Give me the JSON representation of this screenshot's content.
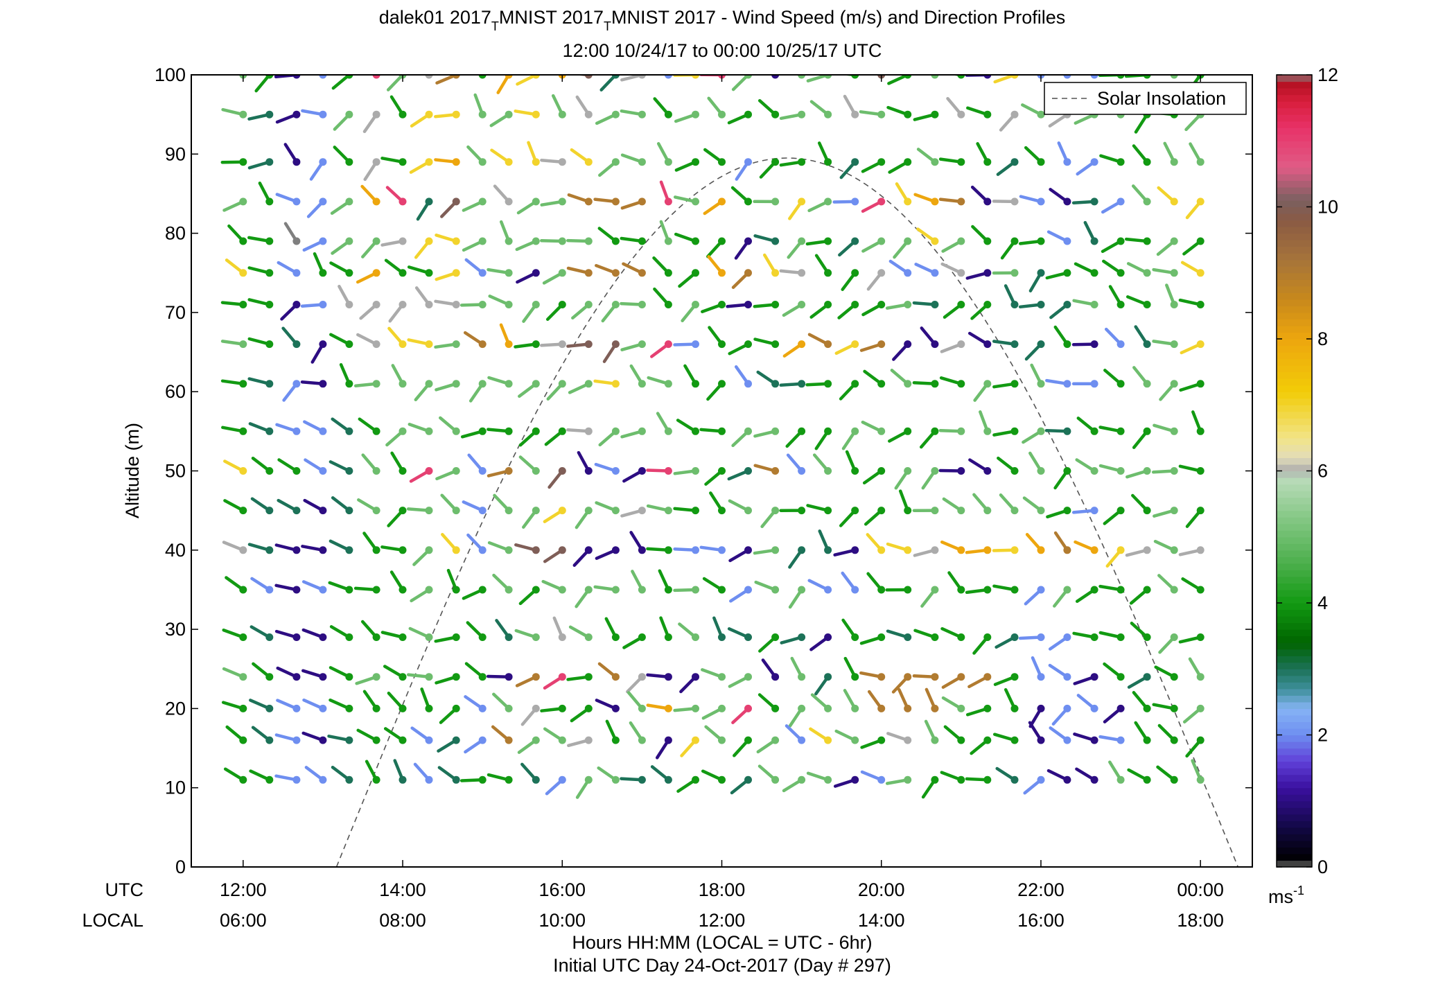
{
  "chart_data": {
    "type": "scatter",
    "title_parts": [
      "dalek01 2017",
      "T",
      "MNIST 2017",
      "T",
      "MNIST 2017 - Wind Speed (m/s) and Direction Profiles"
    ],
    "subtitle": "12:00 10/24/17 to 00:00 10/25/17  UTC",
    "ylabel": "Altitude (m)",
    "xlabel": "Hours HH:MM  (LOCAL = UTC - 6hr)",
    "xlabel2": "Initial UTC Day 24-Oct-2017 (Day # 297)",
    "row_label_utc": "UTC",
    "row_label_local": "LOCAL",
    "ylim": [
      0,
      100
    ],
    "yticks": [
      "0",
      "10",
      "20",
      "30",
      "40",
      "50",
      "60",
      "70",
      "80",
      "90",
      "100"
    ],
    "xlim_hours": [
      11.35,
      24.65
    ],
    "xticks_hours": [
      12,
      14,
      16,
      18,
      20,
      22,
      24
    ],
    "xtick_labels_utc": [
      "12:00",
      "14:00",
      "16:00",
      "18:00",
      "20:00",
      "22:00",
      "00:00"
    ],
    "xtick_labels_local": [
      "06:00",
      "08:00",
      "10:00",
      "12:00",
      "14:00",
      "16:00",
      "18:00"
    ],
    "legend": {
      "label": "Solar Insolation",
      "placement": "top-right",
      "style": "dashed"
    },
    "colorbar": {
      "range": [
        0,
        12
      ],
      "ticks": [
        "0",
        "2",
        "4",
        "6",
        "8",
        "10",
        "12"
      ],
      "unit_base": "ms",
      "unit_exp": "-1",
      "stops": [
        {
          "v": 0.0,
          "c": "#7f7f7f"
        },
        {
          "v": 0.1,
          "c": "#000000"
        },
        {
          "v": 0.6,
          "c": "#120845"
        },
        {
          "v": 1.2,
          "c": "#3a10a0"
        },
        {
          "v": 1.6,
          "c": "#6040d8"
        },
        {
          "v": 2.0,
          "c": "#6e8ef0"
        },
        {
          "v": 2.4,
          "c": "#86b4f4"
        },
        {
          "v": 2.7,
          "c": "#3e8f9a"
        },
        {
          "v": 3.0,
          "c": "#1c7258"
        },
        {
          "v": 3.4,
          "c": "#006400"
        },
        {
          "v": 4.0,
          "c": "#129a12"
        },
        {
          "v": 4.6,
          "c": "#4caf4c"
        },
        {
          "v": 5.3,
          "c": "#86c886"
        },
        {
          "v": 5.9,
          "c": "#bcdcbc"
        },
        {
          "v": 6.0,
          "c": "#ababab"
        },
        {
          "v": 6.2,
          "c": "#e2dcba"
        },
        {
          "v": 6.5,
          "c": "#f2e486"
        },
        {
          "v": 7.2,
          "c": "#f2cc08"
        },
        {
          "v": 8.0,
          "c": "#eda60e"
        },
        {
          "v": 8.6,
          "c": "#c8891c"
        },
        {
          "v": 9.2,
          "c": "#a6743a"
        },
        {
          "v": 9.8,
          "c": "#8a5a44"
        },
        {
          "v": 10.1,
          "c": "#7a6060"
        },
        {
          "v": 10.6,
          "c": "#e05c86"
        },
        {
          "v": 11.2,
          "c": "#e83268"
        },
        {
          "v": 11.6,
          "c": "#d81e3c"
        },
        {
          "v": 11.9,
          "c": "#b01020"
        },
        {
          "v": 12.0,
          "c": "#8a8a8a"
        }
      ]
    },
    "solar_curve": {
      "start_hour": 13.17,
      "end_hour": 24.47,
      "peak_hour": 18.82,
      "peak_alt": 89.5
    },
    "altitudes_m": [
      100,
      95,
      89,
      84,
      79,
      75,
      71,
      66,
      61,
      55,
      50,
      45,
      40,
      35,
      29,
      24,
      20,
      16,
      11
    ],
    "time_hours": [
      12.0,
      12.33,
      12.67,
      13.0,
      13.33,
      13.67,
      14.0,
      14.33,
      14.67,
      15.0,
      15.33,
      15.67,
      16.0,
      16.33,
      16.67,
      17.0,
      17.33,
      17.67,
      18.0,
      18.33,
      18.67,
      19.0,
      19.33,
      19.67,
      20.0,
      20.33,
      20.67,
      21.0,
      21.33,
      21.67,
      22.0,
      22.33,
      22.67,
      23.0,
      23.33,
      23.67,
      24.0
    ],
    "speed_ms": [
      [
        5,
        4,
        1,
        2,
        4,
        11,
        5,
        6,
        9,
        4,
        8,
        7,
        8,
        10,
        3,
        6,
        2,
        7,
        11,
        5,
        1,
        5,
        5,
        4,
        10,
        4,
        5,
        4,
        1,
        7,
        2,
        2,
        2,
        4,
        4,
        5,
        4
      ],
      [
        5,
        3,
        1,
        2,
        5,
        6,
        4,
        7,
        7,
        5,
        5,
        7,
        5,
        6,
        5,
        5,
        4,
        5,
        5,
        4,
        4,
        5,
        5,
        6,
        5,
        4,
        4,
        6,
        4,
        6,
        5,
        6,
        5,
        5,
        4,
        4,
        5
      ],
      [
        4,
        3,
        1,
        2,
        4,
        6,
        4,
        7,
        8,
        5,
        7,
        7,
        6,
        7,
        5,
        5,
        5,
        4,
        4,
        2,
        4,
        4,
        4,
        3,
        4,
        4,
        5,
        4,
        4,
        3,
        4,
        2,
        2,
        4,
        4,
        5,
        5
      ],
      [
        5,
        4,
        2,
        2,
        5,
        8,
        11,
        3,
        10,
        5,
        6,
        5,
        5,
        9,
        9,
        9,
        11,
        5,
        8,
        4,
        5,
        7,
        5,
        2,
        11,
        7,
        8,
        9,
        1,
        6,
        2,
        1,
        3,
        2,
        5,
        7,
        7
      ],
      [
        4,
        4,
        0,
        2,
        5,
        5,
        6,
        7,
        7,
        5,
        5,
        5,
        5,
        5,
        4,
        4,
        5,
        4,
        4,
        1,
        3,
        5,
        4,
        3,
        5,
        5,
        7,
        5,
        4,
        4,
        4,
        2,
        3,
        4,
        4,
        5,
        4
      ],
      [
        7,
        4,
        2,
        4,
        4,
        8,
        4,
        4,
        7,
        2,
        5,
        1,
        5,
        9,
        9,
        9,
        4,
        4,
        8,
        9,
        7,
        6,
        4,
        4,
        6,
        2,
        2,
        6,
        1,
        5,
        3,
        4,
        4,
        4,
        5,
        5,
        7
      ],
      [
        4,
        4,
        1,
        2,
        6,
        6,
        6,
        6,
        6,
        5,
        5,
        5,
        4,
        5,
        5,
        5,
        4,
        5,
        4,
        1,
        4,
        5,
        4,
        4,
        4,
        5,
        3,
        4,
        4,
        3,
        3,
        3,
        5,
        4,
        4,
        5,
        4
      ],
      [
        5,
        4,
        3,
        1,
        4,
        6,
        7,
        7,
        5,
        9,
        8,
        4,
        6,
        10,
        10,
        5,
        11,
        2,
        4,
        4,
        4,
        8,
        9,
        7,
        9,
        1,
        1,
        6,
        1,
        3,
        3,
        4,
        1,
        2,
        3,
        5,
        7
      ],
      [
        4,
        3,
        2,
        1,
        4,
        5,
        5,
        5,
        5,
        5,
        5,
        5,
        5,
        5,
        7,
        5,
        5,
        4,
        4,
        2,
        3,
        3,
        4,
        4,
        4,
        5,
        4,
        4,
        5,
        4,
        5,
        2,
        2,
        4,
        5,
        5,
        4
      ],
      [
        4,
        3,
        2,
        2,
        3,
        4,
        5,
        5,
        5,
        4,
        4,
        4,
        4,
        6,
        5,
        5,
        5,
        4,
        4,
        5,
        5,
        4,
        4,
        5,
        5,
        4,
        4,
        5,
        5,
        4,
        5,
        3,
        4,
        4,
        4,
        5,
        4
      ],
      [
        7,
        4,
        4,
        2,
        3,
        5,
        4,
        11,
        5,
        2,
        9,
        5,
        10,
        1,
        2,
        1,
        11,
        5,
        4,
        3,
        9,
        2,
        5,
        4,
        4,
        5,
        5,
        1,
        1,
        4,
        5,
        4,
        5,
        5,
        5,
        5,
        4
      ],
      [
        4,
        3,
        3,
        1,
        3,
        5,
        4,
        5,
        5,
        2,
        5,
        5,
        7,
        5,
        5,
        6,
        5,
        4,
        4,
        5,
        5,
        4,
        4,
        4,
        4,
        4,
        5,
        5,
        5,
        5,
        5,
        4,
        2,
        4,
        4,
        5,
        4
      ],
      [
        6,
        3,
        1,
        1,
        3,
        4,
        4,
        5,
        7,
        2,
        5,
        10,
        10,
        1,
        1,
        1,
        4,
        2,
        2,
        1,
        5,
        3,
        3,
        1,
        7,
        7,
        6,
        8,
        8,
        7,
        8,
        9,
        8,
        7,
        6,
        5,
        6
      ],
      [
        4,
        2,
        1,
        2,
        4,
        4,
        4,
        5,
        4,
        4,
        5,
        4,
        5,
        5,
        5,
        5,
        4,
        5,
        4,
        2,
        5,
        5,
        2,
        2,
        4,
        4,
        5,
        4,
        4,
        4,
        2,
        5,
        4,
        4,
        4,
        5,
        4
      ],
      [
        4,
        3,
        1,
        1,
        4,
        4,
        4,
        5,
        4,
        4,
        3,
        5,
        6,
        5,
        4,
        4,
        4,
        5,
        3,
        3,
        4,
        3,
        1,
        4,
        4,
        3,
        4,
        4,
        4,
        3,
        2,
        2,
        4,
        4,
        4,
        5,
        4
      ],
      [
        5,
        4,
        1,
        1,
        4,
        5,
        4,
        5,
        4,
        4,
        1,
        9,
        11,
        4,
        9,
        6,
        1,
        1,
        5,
        5,
        1,
        5,
        3,
        4,
        9,
        9,
        9,
        9,
        9,
        4,
        2,
        2,
        1,
        4,
        3,
        4,
        5
      ],
      [
        4,
        3,
        2,
        2,
        4,
        4,
        4,
        4,
        4,
        2,
        5,
        6,
        4,
        4,
        1,
        5,
        8,
        5,
        5,
        11,
        4,
        5,
        5,
        5,
        9,
        9,
        9,
        5,
        4,
        4,
        1,
        2,
        2,
        1,
        4,
        4,
        5
      ],
      [
        4,
        3,
        2,
        1,
        3,
        4,
        4,
        2,
        3,
        2,
        9,
        5,
        5,
        6,
        4,
        5,
        1,
        7,
        5,
        4,
        5,
        2,
        7,
        5,
        4,
        6,
        5,
        4,
        4,
        4,
        1,
        2,
        1,
        2,
        4,
        4,
        4
      ],
      [
        4,
        4,
        2,
        2,
        3,
        4,
        3,
        2,
        3,
        4,
        4,
        3,
        2,
        5,
        5,
        3,
        3,
        4,
        4,
        3,
        5,
        5,
        5,
        1,
        2,
        5,
        4,
        4,
        4,
        3,
        2,
        1,
        1,
        5,
        4,
        4,
        5
      ]
    ]
  }
}
